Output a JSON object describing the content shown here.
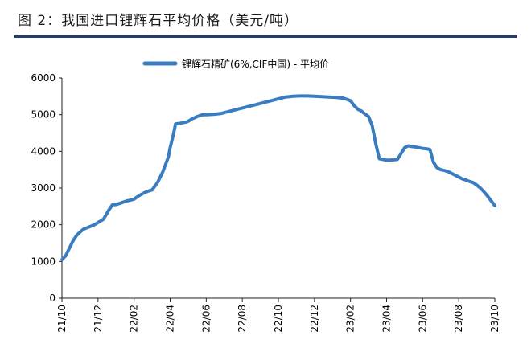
{
  "figure": {
    "title": "图 2：我国进口锂辉石平均价格（美元/吨）"
  },
  "chart_data": {
    "type": "line",
    "legend": {
      "label": "锂辉石精矿(6%,CIF中国) - 平均价",
      "placement": "top-center"
    },
    "series_color": "#3a7cc0",
    "ylim": [
      0,
      6000
    ],
    "yticks": [
      0,
      1000,
      2000,
      3000,
      4000,
      5000,
      6000
    ],
    "xlim": [
      0,
      24
    ],
    "xticks": [
      {
        "x": 0,
        "label": "21/10"
      },
      {
        "x": 2,
        "label": "21/12"
      },
      {
        "x": 4,
        "label": "22/02"
      },
      {
        "x": 6,
        "label": "22/04"
      },
      {
        "x": 8,
        "label": "22/06"
      },
      {
        "x": 10,
        "label": "22/08"
      },
      {
        "x": 12,
        "label": "22/10"
      },
      {
        "x": 14,
        "label": "22/12"
      },
      {
        "x": 16,
        "label": "23/02"
      },
      {
        "x": 18,
        "label": "23/04"
      },
      {
        "x": 20,
        "label": "23/06"
      },
      {
        "x": 22,
        "label": "23/08"
      },
      {
        "x": 24,
        "label": "23/10"
      }
    ],
    "grid": false,
    "series": [
      {
        "x": [
          0,
          0.2,
          0.4,
          0.6,
          0.8,
          1.0,
          1.2,
          1.4,
          1.6,
          1.8,
          2.0,
          2.3,
          2.6,
          2.8,
          3.0,
          3.3,
          3.6,
          3.8,
          4.0,
          4.3,
          4.6,
          4.8,
          5.0,
          5.3,
          5.6,
          5.9,
          6.0,
          6.2,
          6.3,
          6.5,
          6.6,
          6.7,
          6.8,
          6.9,
          7.0,
          7.2,
          7.5,
          7.8,
          8.0,
          8.4,
          8.8,
          9.2,
          9.6,
          10.0,
          10.4,
          10.8,
          11.2,
          11.6,
          12.0,
          12.4,
          12.8,
          13.2,
          13.6,
          14.0,
          14.4,
          14.8,
          15.2,
          15.6,
          16.0,
          16.2,
          16.4,
          16.6,
          16.8,
          17.0,
          17.2,
          17.4,
          17.6,
          17.8,
          18.0,
          18.2,
          18.6,
          19.0,
          19.2,
          19.4,
          19.6,
          19.8,
          20.0,
          20.2,
          20.4,
          20.6,
          20.8,
          21.0,
          21.2,
          21.4,
          21.6,
          21.8,
          22.0,
          22.2,
          22.4,
          22.6,
          22.8,
          23.0,
          23.2,
          23.4,
          23.6,
          23.8,
          24.0
        ],
        "y": [
          1050,
          1150,
          1350,
          1550,
          1700,
          1800,
          1880,
          1920,
          1960,
          2000,
          2060,
          2150,
          2400,
          2550,
          2550,
          2600,
          2650,
          2670,
          2700,
          2800,
          2880,
          2920,
          2950,
          3150,
          3450,
          3850,
          4100,
          4500,
          4750,
          4760,
          4770,
          4780,
          4790,
          4800,
          4820,
          4880,
          4950,
          5000,
          5000,
          5010,
          5030,
          5080,
          5130,
          5180,
          5230,
          5280,
          5330,
          5380,
          5430,
          5480,
          5500,
          5510,
          5510,
          5500,
          5490,
          5480,
          5470,
          5450,
          5380,
          5250,
          5150,
          5100,
          5020,
          4950,
          4700,
          4200,
          3800,
          3780,
          3760,
          3760,
          3780,
          4100,
          4150,
          4130,
          4120,
          4100,
          4080,
          4070,
          4050,
          3700,
          3550,
          3500,
          3480,
          3450,
          3400,
          3350,
          3300,
          3250,
          3220,
          3180,
          3150,
          3080,
          3000,
          2900,
          2780,
          2650,
          2520
        ]
      }
    ]
  }
}
